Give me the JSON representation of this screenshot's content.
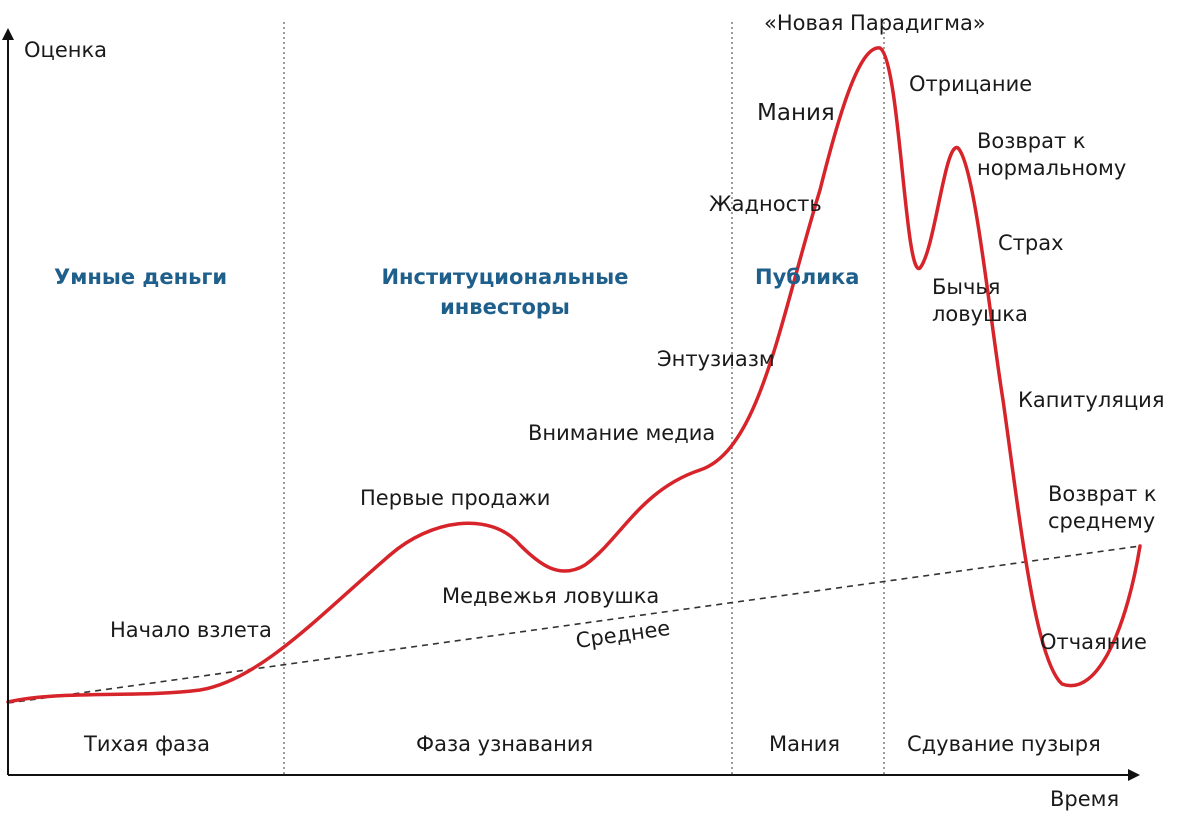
{
  "axes": {
    "y_label": "Оценка",
    "x_label": "Время"
  },
  "groups": {
    "smart_money": "Умные деньги",
    "institutional_1": "Институциональные",
    "institutional_2": "инвесторы",
    "public": "Публика"
  },
  "phases": {
    "stealth": "Тихая фаза",
    "awareness": "Фаза узнавания",
    "mania": "Мания",
    "blowoff": "Сдувание пузыря"
  },
  "points": {
    "new_paradigm": "«Новая Парадигма»",
    "mania": "Мания",
    "denial": "Отрицание",
    "return_normal_1": "Возврат к",
    "return_normal_2": "нормальному",
    "greed": "Жадность",
    "fear": "Страх",
    "bull_trap_1": "Бычья",
    "bull_trap_2": "ловушка",
    "enthusiasm": "Энтузиазм",
    "capitulation": "Капитуляция",
    "media_attention": "Внимание медиа",
    "return_mean_1": "Возврат к",
    "return_mean_2": "среднему",
    "first_selloff": "Первые продажи",
    "bear_trap": "Медвежья ловушка",
    "takeoff": "Начало взлета",
    "mean": "Среднее",
    "despair": "Отчаяние"
  },
  "colors": {
    "curve": "#d6242a",
    "group_text": "#1f5f8b",
    "axis": "#111111",
    "divider": "#666666",
    "mean_line": "#333333"
  }
}
